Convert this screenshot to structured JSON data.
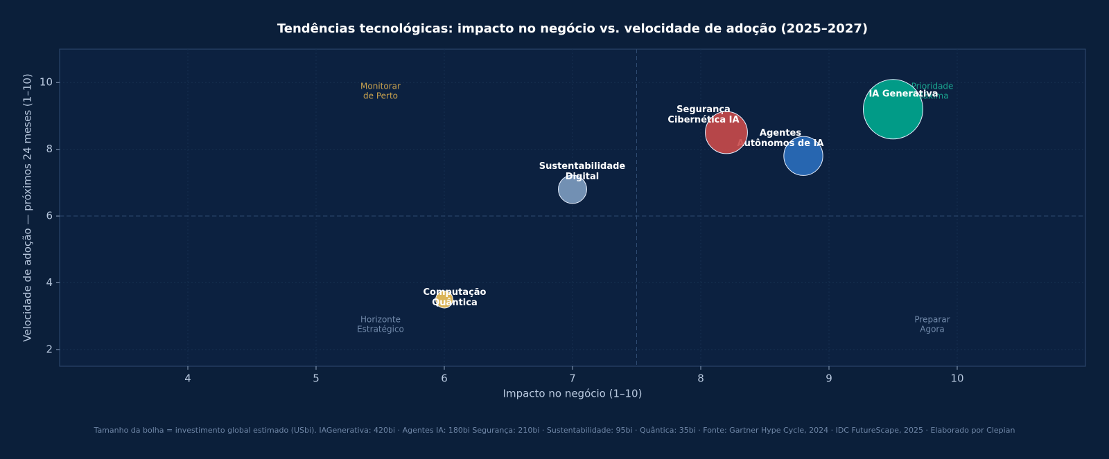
{
  "chart_data": {
    "type": "scatter",
    "title": "Tendências tecnológicas: impacto no negócio vs. velocidade de adoção (2025–2027)",
    "x_label": "Impacto no negócio (1–10)",
    "y_label": "Velocidade de adoção — próximos 24 meses (1–10)",
    "series": [
      {
        "labels": [
          [
            "IA Generativa"
          ],
          [
            "Agentes",
            "Autônomos de IA"
          ],
          [
            "Segurança",
            "Cibernética IA"
          ],
          [
            "Sustentabilidade",
            "Digital"
          ],
          [
            "Computação",
            "Quântica"
          ]
        ],
        "x": [
          9.5,
          8.8,
          8.2,
          7.0,
          6.0
        ],
        "values": [
          9.2,
          7.8,
          8.5,
          6.8,
          3.5
        ],
        "sizes": [
          420,
          180,
          210,
          95,
          35
        ],
        "colors": [
          "#00a88f",
          "#2a6ebd",
          "#c94a4a",
          "#7d9cc0",
          "#f2c45a"
        ]
      }
    ],
    "xlim": [
      3,
      11
    ],
    "ylim": [
      1.5,
      11
    ],
    "xticks": [
      4,
      5,
      6,
      7,
      8,
      9,
      10
    ],
    "yticks": [
      2,
      4,
      6,
      8,
      10
    ],
    "grid": true,
    "reference_lines": {
      "x": 7.5,
      "y": 6
    },
    "quadrant_labels": [
      {
        "lines": [
          "Monitorar",
          "de Perto"
        ],
        "color": "#c9a24e"
      },
      {
        "lines": [
          "Prioridade",
          "Máxima"
        ],
        "color": "#1aa58f"
      },
      {
        "lines": [
          "Horizonte",
          "Estratégico"
        ],
        "color": "#7088a8"
      },
      {
        "lines": [
          "Preparar",
          "Agora"
        ],
        "color": "#7088a8"
      }
    ],
    "footnote": "Tamanho da bolha = investimento global estimado (USbi). IAGenerativa: 420bi · Agentes IA: 180bi Segurança: 210bi · Sustentabilidade: 95bi · Quântica: 35bi  ·  Fonte: Gartner Hype Cycle, 2024 · IDC FutureScape, 2025 · Elaborado por Clepian"
  }
}
